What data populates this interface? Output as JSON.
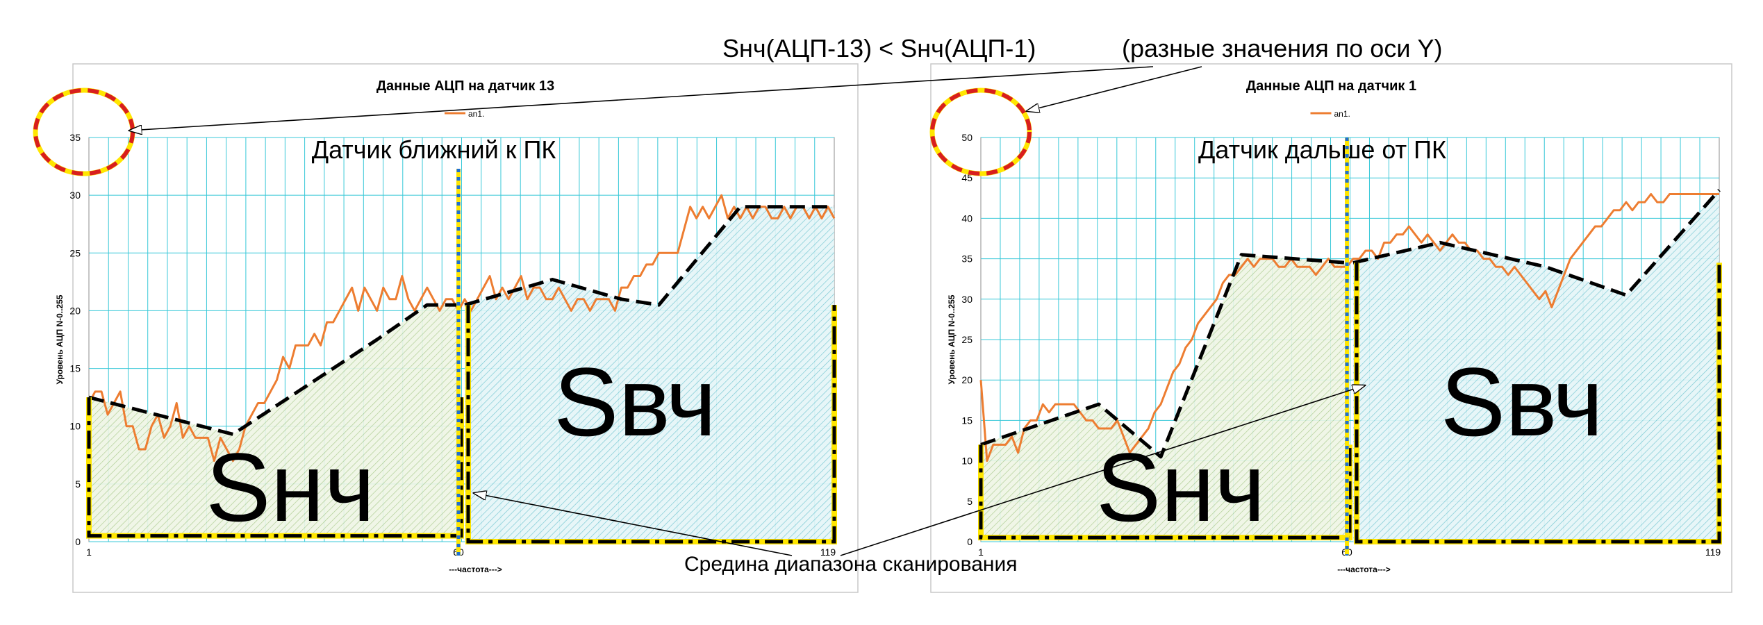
{
  "annotations": {
    "top_comparison": "Sнч(АЦП-13) < Sнч(АЦП-1)",
    "top_note": "(разные значения по оси Y)",
    "bottom_note": "Средина диапазона сканирования"
  },
  "chart_data": [
    {
      "type": "line",
      "title": "Данные АЦП на датчик 13",
      "subtitle": "Датчик   ближний к ПК",
      "xlabel": "---частота--->",
      "ylabel": "Уровень АЦП N-0..255",
      "legend": "an1.",
      "legend_position": "top-center",
      "xlim": [
        1,
        120
      ],
      "ylim": [
        0,
        35
      ],
      "yticks": [
        0,
        5,
        10,
        15,
        20,
        25,
        30,
        35
      ],
      "xticks": [
        1,
        60,
        119
      ],
      "grid": true,
      "midpoint_x": 60,
      "region_low_label": "Sнч",
      "region_high_label": "Sвч",
      "series": [
        {
          "name": "an1.",
          "color": "#ED7D31",
          "x": [
            1,
            2,
            3,
            4,
            5,
            6,
            7,
            8,
            9,
            10,
            11,
            12,
            13,
            14,
            15,
            16,
            17,
            18,
            19,
            20,
            21,
            22,
            23,
            24,
            25,
            26,
            27,
            28,
            29,
            30,
            31,
            32,
            33,
            34,
            35,
            36,
            37,
            38,
            39,
            40,
            41,
            42,
            43,
            44,
            45,
            46,
            47,
            48,
            49,
            50,
            51,
            52,
            53,
            54,
            55,
            56,
            57,
            58,
            59,
            60,
            61,
            62,
            63,
            64,
            65,
            66,
            67,
            68,
            69,
            70,
            71,
            72,
            73,
            74,
            75,
            76,
            77,
            78,
            79,
            80,
            81,
            82,
            83,
            84,
            85,
            86,
            87,
            88,
            89,
            90,
            91,
            92,
            93,
            94,
            95,
            96,
            97,
            98,
            99,
            100,
            101,
            102,
            103,
            104,
            105,
            106,
            107,
            108,
            109,
            110,
            111,
            112,
            113,
            114,
            115,
            116,
            117,
            118,
            119,
            120
          ],
          "y": [
            12,
            13,
            13,
            11,
            12,
            13,
            10,
            10,
            8,
            8,
            10,
            11,
            9,
            10,
            12,
            9,
            10,
            9,
            9,
            9,
            7,
            9,
            8,
            7,
            8,
            10,
            11,
            12,
            12,
            13,
            14,
            16,
            15,
            17,
            17,
            17,
            18,
            17,
            19,
            19,
            20,
            21,
            22,
            20,
            22,
            21,
            20,
            22,
            21,
            21,
            23,
            21,
            20,
            21,
            22,
            21,
            20,
            21,
            21,
            20,
            21,
            20,
            21,
            22,
            23,
            21,
            22,
            21,
            22,
            23,
            21,
            22,
            22,
            21,
            21,
            22,
            21,
            20,
            21,
            21,
            20,
            21,
            21,
            21,
            20,
            22,
            22,
            23,
            23,
            24,
            24,
            25,
            25,
            25,
            25,
            27,
            29,
            28,
            29,
            28,
            29,
            30,
            28,
            29,
            28,
            29,
            28,
            29,
            29,
            28,
            28,
            29,
            28,
            29,
            29,
            28,
            29,
            28,
            29,
            28
          ]
        },
        {
          "name": "",
          "color": "#000000",
          "style": "dashed",
          "x": [
            1,
            24,
            47,
            55,
            60
          ],
          "y": [
            12.5,
            9.3,
            17.5,
            20.5,
            20.5
          ]
        },
        {
          "name": "",
          "color": "#000000",
          "style": "dashed",
          "x": [
            61,
            75,
            86,
            92,
            105,
            120
          ],
          "y": [
            20.5,
            22.7,
            21,
            20.5,
            29,
            29
          ]
        }
      ]
    },
    {
      "type": "line",
      "title": "Данные АЦП на датчик 1",
      "subtitle": "Датчик дальше от  ПК",
      "xlabel": "---частота--->",
      "ylabel": "Уровень АЦП N-0..255",
      "legend": "an1.",
      "legend_position": "top-center",
      "xlim": [
        1,
        120
      ],
      "ylim": [
        0,
        50
      ],
      "yticks": [
        0,
        5,
        10,
        15,
        20,
        25,
        30,
        35,
        40,
        45,
        50
      ],
      "xticks": [
        1,
        60,
        119
      ],
      "grid": true,
      "midpoint_x": 60,
      "region_low_label": "Sнч",
      "region_high_label": "Sвч",
      "series": [
        {
          "name": "an1.",
          "color": "#ED7D31",
          "x": [
            1,
            2,
            3,
            4,
            5,
            6,
            7,
            8,
            9,
            10,
            11,
            12,
            13,
            14,
            15,
            16,
            17,
            18,
            19,
            20,
            21,
            22,
            23,
            24,
            25,
            26,
            27,
            28,
            29,
            30,
            31,
            32,
            33,
            34,
            35,
            36,
            37,
            38,
            39,
            40,
            41,
            42,
            43,
            44,
            45,
            46,
            47,
            48,
            49,
            50,
            51,
            52,
            53,
            54,
            55,
            56,
            57,
            58,
            59,
            60,
            61,
            62,
            63,
            64,
            65,
            66,
            67,
            68,
            69,
            70,
            71,
            72,
            73,
            74,
            75,
            76,
            77,
            78,
            79,
            80,
            81,
            82,
            83,
            84,
            85,
            86,
            87,
            88,
            89,
            90,
            91,
            92,
            93,
            94,
            95,
            96,
            97,
            98,
            99,
            100,
            101,
            102,
            103,
            104,
            105,
            106,
            107,
            108,
            109,
            110,
            111,
            112,
            113,
            114,
            115,
            116,
            117,
            118,
            119,
            120
          ],
          "y": [
            20,
            10,
            12,
            12,
            12,
            13,
            11,
            14,
            15,
            15,
            17,
            16,
            17,
            17,
            17,
            17,
            16,
            15,
            15,
            14,
            14,
            14,
            15,
            13,
            11,
            12,
            13,
            14,
            16,
            17,
            19,
            21,
            22,
            24,
            25,
            27,
            28,
            29,
            30,
            32,
            33,
            33,
            34,
            35,
            34,
            35,
            35,
            35,
            34,
            34,
            35,
            34,
            34,
            34,
            33,
            34,
            35,
            34,
            34,
            34,
            35,
            35,
            36,
            36,
            35,
            37,
            37,
            38,
            38,
            39,
            38,
            37,
            38,
            37,
            36,
            37,
            38,
            37,
            37,
            36,
            36,
            35,
            35,
            34,
            34,
            33,
            34,
            33,
            32,
            31,
            30,
            31,
            29,
            31,
            33,
            35,
            36,
            37,
            38,
            39,
            39,
            40,
            41,
            41,
            42,
            41,
            42,
            42,
            43,
            42,
            42,
            43,
            43,
            43,
            43,
            43,
            43,
            43,
            43,
            43
          ]
        },
        {
          "name": "",
          "color": "#000000",
          "style": "dashed",
          "x": [
            1,
            20,
            30,
            43,
            60
          ],
          "y": [
            12,
            17,
            10.5,
            35.5,
            34.5
          ]
        },
        {
          "name": "",
          "color": "#000000",
          "style": "dashed",
          "x": [
            61,
            75,
            92,
            105,
            120
          ],
          "y": [
            34.5,
            37,
            34,
            30.5,
            43.5
          ]
        }
      ]
    }
  ]
}
